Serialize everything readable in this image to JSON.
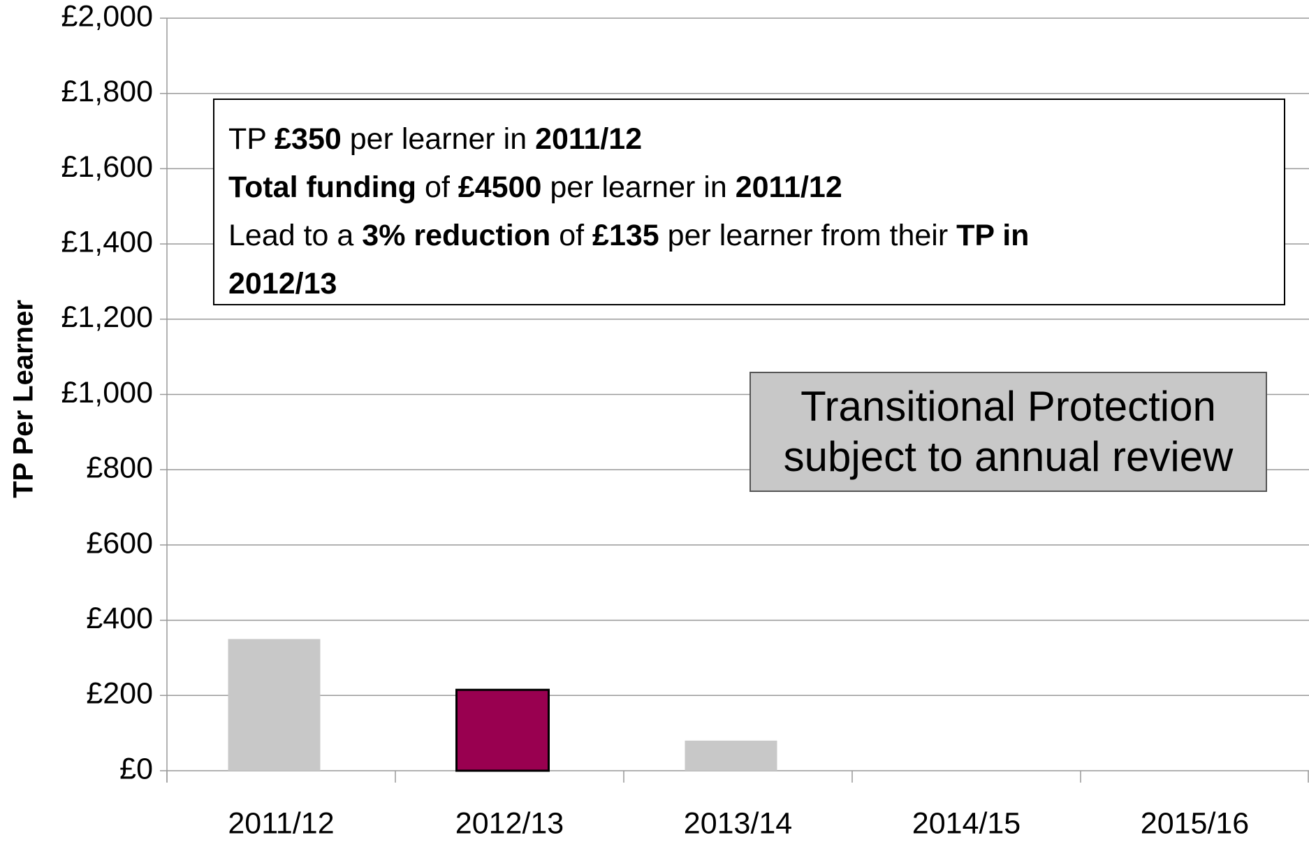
{
  "chart_data": {
    "type": "bar",
    "y_label": "TP Per Learner",
    "categories": [
      "2011/12",
      "2012/13",
      "2013/14",
      "2014/15",
      "2015/16"
    ],
    "values": [
      350,
      215,
      80,
      0,
      0
    ],
    "colors": [
      "#c8c8c8",
      "#990050",
      "#c8c8c8",
      "#c8c8c8",
      "#c8c8c8"
    ],
    "ylim": [
      0,
      2000
    ],
    "yticks": [
      {
        "value": 0,
        "label": "£0"
      },
      {
        "value": 200,
        "label": "£200"
      },
      {
        "value": 400,
        "label": "£400"
      },
      {
        "value": 600,
        "label": "£600"
      },
      {
        "value": 800,
        "label": "£800"
      },
      {
        "value": 1000,
        "label": "£1,000"
      },
      {
        "value": 1200,
        "label": "£1,200"
      },
      {
        "value": 1400,
        "label": "£1,400"
      },
      {
        "value": 1600,
        "label": "£1,600"
      },
      {
        "value": 1800,
        "label": "£1,800"
      },
      {
        "value": 2000,
        "label": "£2,000"
      }
    ],
    "grid": true,
    "annotations": [
      {
        "lines": [
          [
            {
              "text": "TP ",
              "bold": false
            },
            {
              "text": "£350",
              "bold": true
            },
            {
              "text": " per learner in ",
              "bold": false
            },
            {
              "text": "2011/12",
              "bold": true
            }
          ],
          [
            {
              "text": "Total funding",
              "bold": true
            },
            {
              "text": " of ",
              "bold": false
            },
            {
              "text": "£4500",
              "bold": true
            },
            {
              "text": " per learner in ",
              "bold": false
            },
            {
              "text": "2011/12",
              "bold": true
            }
          ],
          [
            {
              "text": "Lead to a ",
              "bold": false
            },
            {
              "text": "3% reduction",
              "bold": true
            },
            {
              "text": " of ",
              "bold": false
            },
            {
              "text": "£135",
              "bold": true
            },
            {
              "text": " per learner from their ",
              "bold": false
            },
            {
              "text": "TP in",
              "bold": true
            }
          ],
          [
            {
              "text": "2012/13",
              "bold": true
            }
          ]
        ]
      },
      {
        "text": "Transitional Protection subject to annual review"
      }
    ]
  }
}
